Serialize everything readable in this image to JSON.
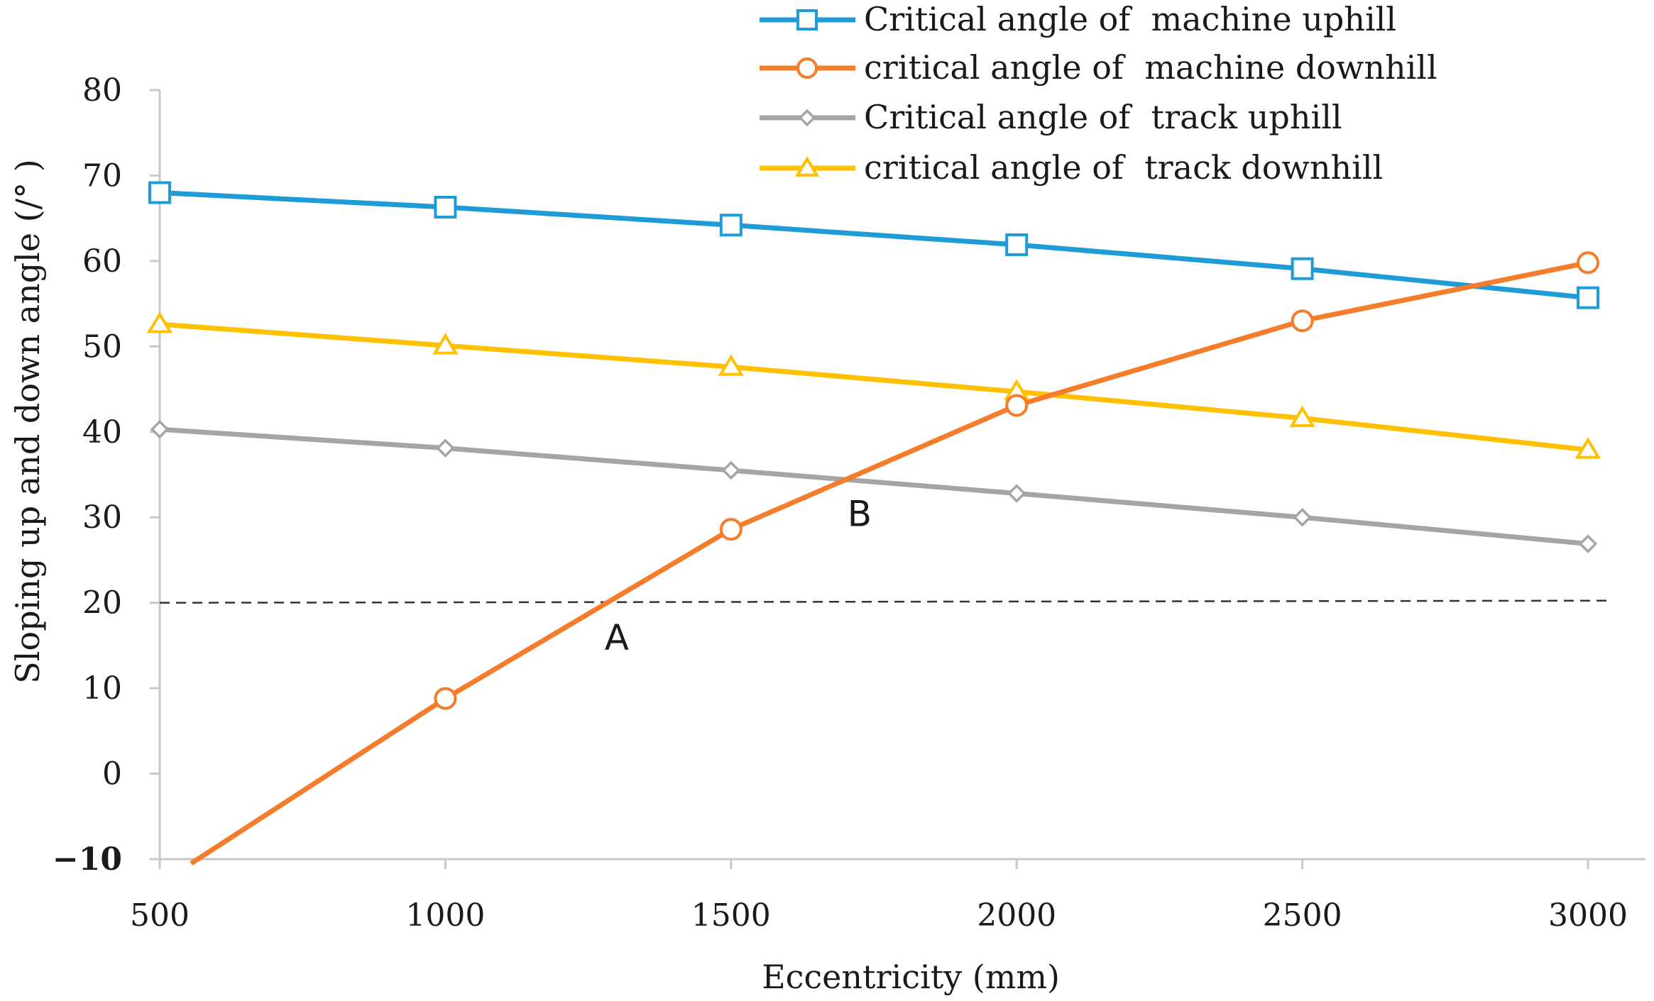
{
  "chart_data": {
    "type": "line",
    "title": "",
    "xlabel": "Eccentricity (mm)",
    "ylabel": "Sloping up and down angle (/° )",
    "x": [
      500,
      1000,
      1500,
      2000,
      2500,
      3000
    ],
    "xlim": [
      500,
      3000
    ],
    "ylim": [
      -10,
      80
    ],
    "xticks": [
      "500",
      "1000",
      "1500",
      "2000",
      "2500",
      "3000"
    ],
    "yticks": [
      "80",
      "70",
      "60",
      "50",
      "40",
      "30",
      "20",
      "10",
      "0",
      "−10"
    ],
    "grid": false,
    "legend_position": "top-right",
    "series": [
      {
        "name": "Critical angle of  machine uphill",
        "color": "#1f9bd7",
        "marker": "square",
        "values": [
          68,
          66.3,
          64.2,
          61.9,
          59.1,
          55.7
        ]
      },
      {
        "name": "critical angle of  machine downhill",
        "color": "#f57c2b",
        "marker": "circle",
        "x": [
          555,
          1000,
          1500,
          2000,
          2500,
          3000
        ],
        "values": [
          -10.5,
          8.8,
          28.6,
          43.1,
          53,
          59.8
        ]
      },
      {
        "name": "Critical angle of  track uphill",
        "color": "#a5a5a5",
        "marker": "diamond",
        "values": [
          40.3,
          38.1,
          35.5,
          32.8,
          30,
          26.9
        ]
      },
      {
        "name": "critical angle of  track downhill",
        "color": "#ffc000",
        "marker": "triangle",
        "values": [
          52.6,
          50.1,
          47.6,
          44.7,
          41.6,
          37.9
        ]
      }
    ],
    "reference_line": {
      "y": 20,
      "style": "dashed",
      "x_end": 3040
    },
    "annotations": [
      {
        "text": "A",
        "x": 1300,
        "y": 14.5
      },
      {
        "text": "B",
        "x": 1725,
        "y": 29
      }
    ]
  }
}
